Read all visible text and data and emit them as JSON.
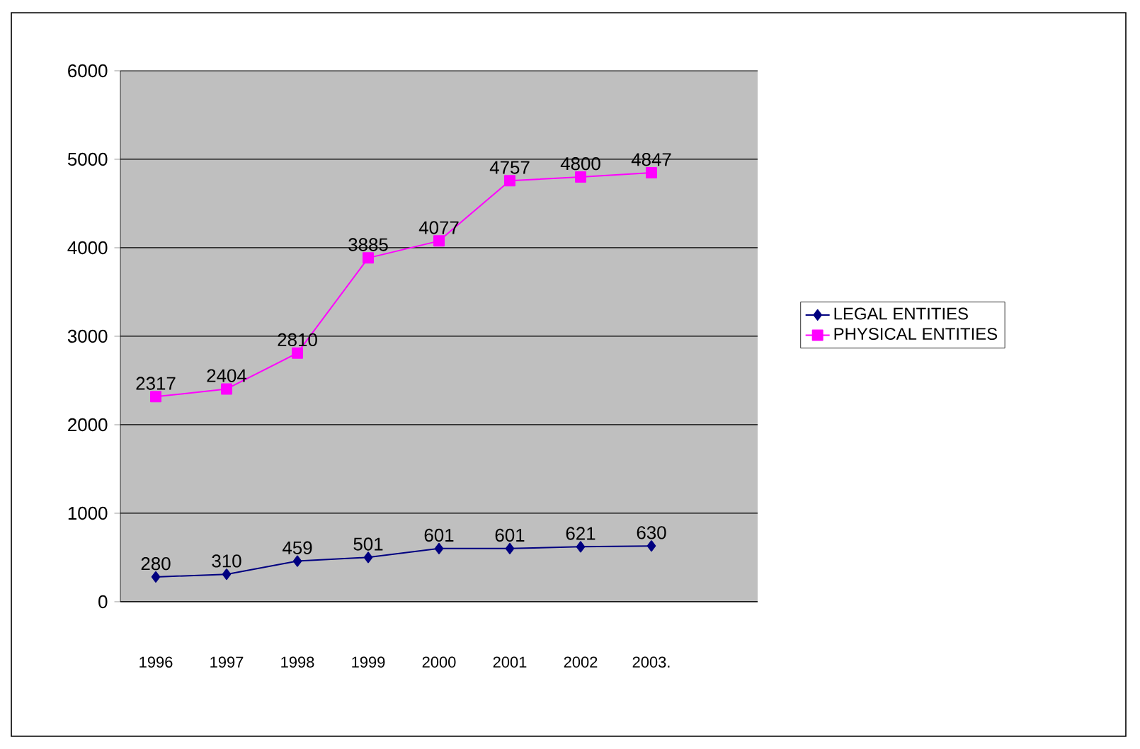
{
  "chart_data": {
    "type": "line",
    "categories": [
      "1996",
      "1997",
      "1998",
      "1999",
      "2000",
      "2001",
      "2002",
      "2003.",
      null
    ],
    "series": [
      {
        "name": "LEGAL ENTITIES",
        "color": "#000080",
        "marker": "diamond",
        "values": [
          280,
          310,
          459,
          501,
          601,
          601,
          621,
          630,
          null
        ]
      },
      {
        "name": "PHYSICAL ENTITIES",
        "color": "#ff00ff",
        "marker": "square",
        "values": [
          2317,
          2404,
          2810,
          3885,
          4077,
          4757,
          4800,
          4847,
          null
        ]
      }
    ],
    "ylim": [
      0,
      6000
    ],
    "yticks": [
      0,
      1000,
      2000,
      3000,
      4000,
      5000,
      6000
    ],
    "grid": "y",
    "legend": "right",
    "data_labels": true
  }
}
